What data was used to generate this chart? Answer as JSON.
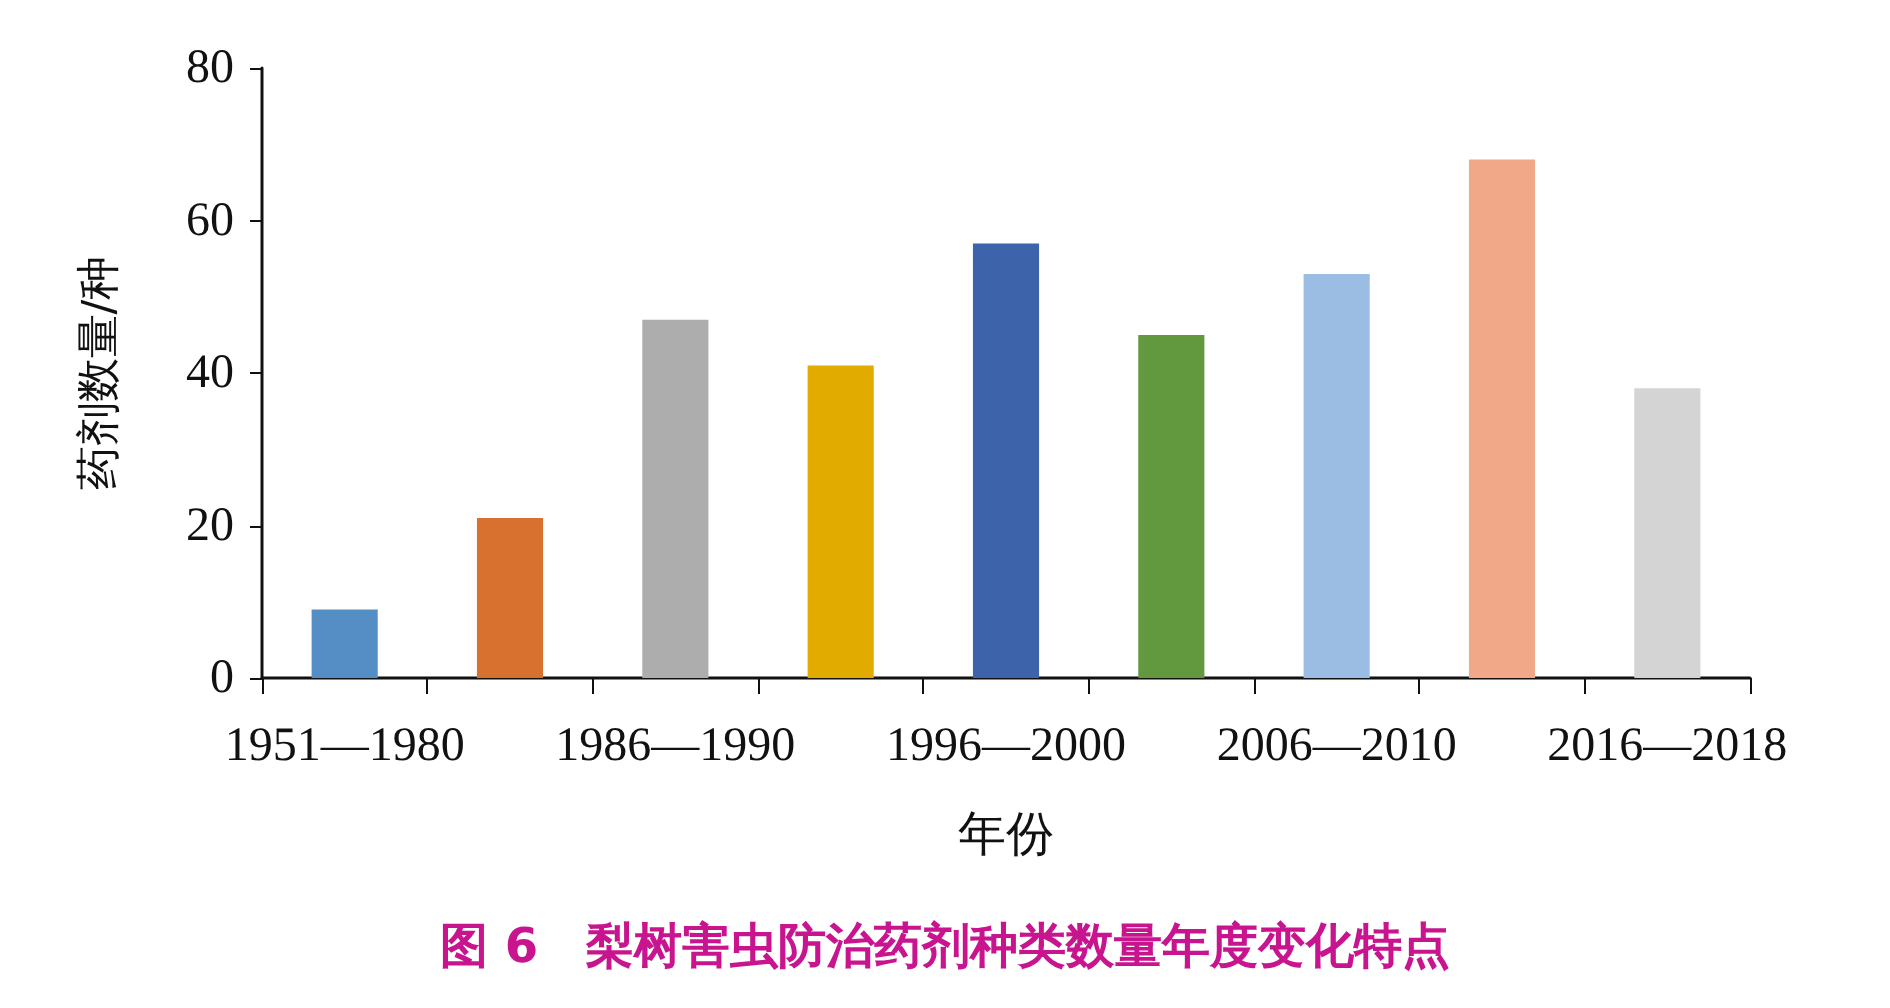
{
  "chart_data": {
    "type": "bar",
    "title": "图 6　梨树害虫防治药剂种类数量年度变化特点",
    "xlabel": "年份",
    "ylabel": "药剂数量/种",
    "categories": [
      "1951—1980",
      null,
      "1986—1990",
      null,
      "1996—2000",
      null,
      "2006—2010",
      null,
      "2016—2018"
    ],
    "values": [
      9,
      21,
      47,
      41,
      57,
      45,
      53,
      68,
      38
    ],
    "colors": [
      "#558ec4",
      "#d8702f",
      "#adadad",
      "#e2ab00",
      "#3d63aa",
      "#62993e",
      "#9cbde3",
      "#f1a888",
      "#d4d4d4"
    ],
    "ylim": [
      0,
      80
    ],
    "yticks": [
      0,
      20,
      40,
      60,
      80
    ],
    "grid": false
  }
}
